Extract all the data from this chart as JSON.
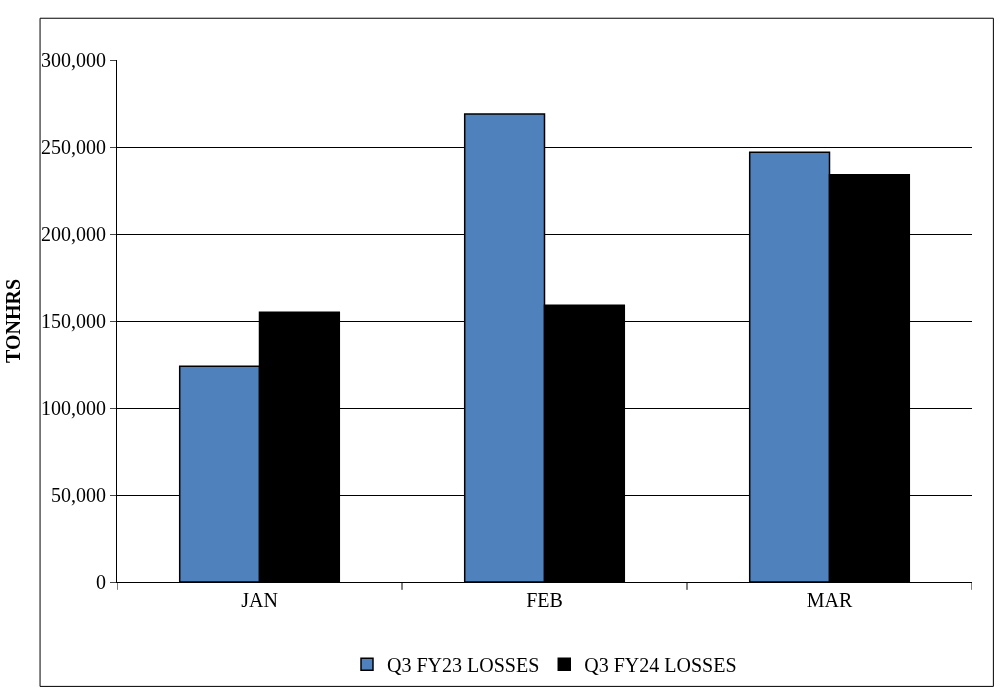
{
  "chart_data": {
    "type": "bar",
    "ylabel": "TONHRS",
    "categories": [
      "JAN",
      "FEB",
      "MAR"
    ],
    "series": [
      {
        "name": "Q3 FY23 LOSSES",
        "color": "#4f81bd",
        "values": [
          124000,
          269000,
          247000
        ]
      },
      {
        "name": "Q3 FY24 LOSSES",
        "color": "#000000",
        "values": [
          155000,
          159000,
          234000
        ]
      }
    ],
    "ylim": [
      0,
      300000
    ],
    "yticks": [
      {
        "value": 0,
        "label": "0"
      },
      {
        "value": 50000,
        "label": "50,000"
      },
      {
        "value": 100000,
        "label": "100,000"
      },
      {
        "value": 150000,
        "label": "150,000"
      },
      {
        "value": 200000,
        "label": "200,000"
      },
      {
        "value": 250000,
        "label": "250,000"
      },
      {
        "value": 300000,
        "label": "300,000"
      }
    ],
    "grid": "y",
    "legend": "bottom"
  }
}
